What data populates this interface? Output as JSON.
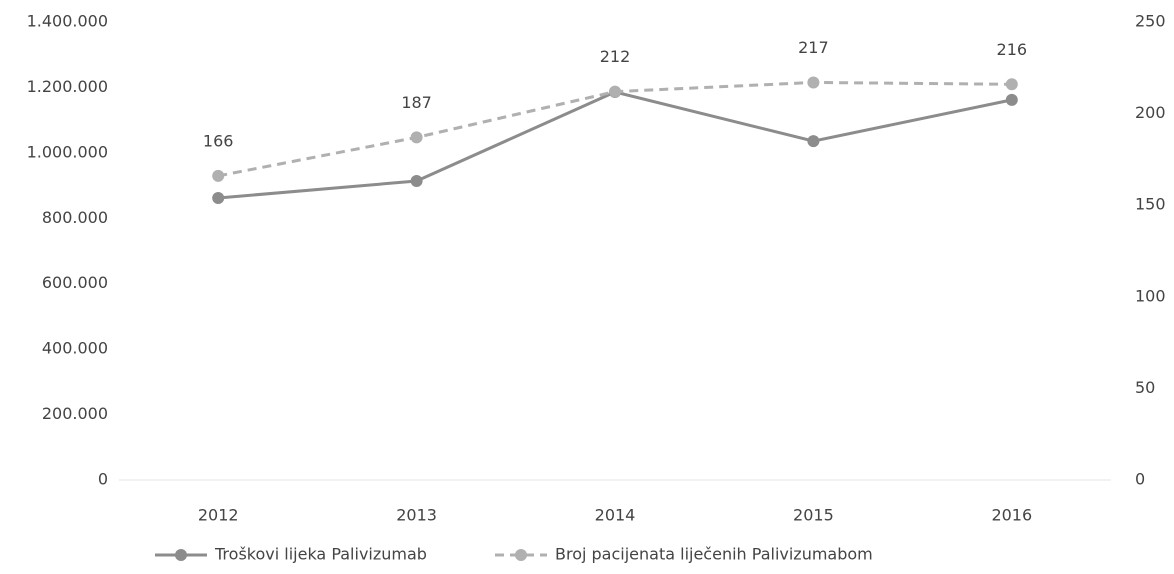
{
  "chart_data": {
    "type": "line",
    "categories": [
      "2012",
      "2013",
      "2014",
      "2015",
      "2016"
    ],
    "series": [
      {
        "name": "Troškovi lijeka Palivizumab",
        "color": "#8c8c8c",
        "values": [
          862000,
          914000,
          1186000,
          1036000,
          1162000
        ]
      },
      {
        "name": "Broj pacijenata liječenih Palivizumabom",
        "color": "#b0b0b0",
        "axis": "y2",
        "dashed": true,
        "values": [
          166,
          187,
          212,
          217,
          216
        ]
      }
    ],
    "ylim": [
      0,
      1400000
    ],
    "yticks": [
      0,
      {
        "value": 200000,
        "label": "200.000"
      },
      {
        "value": 400000,
        "label": "400.000"
      },
      {
        "value": 600000,
        "label": "600.000"
      },
      {
        "value": 800000,
        "label": "800.000"
      },
      {
        "value": 1000000,
        "label": "1.000.000"
      },
      {
        "value": 1200000,
        "label": "1.200.000"
      },
      {
        "value": 1400000,
        "label": "1.400.000"
      }
    ],
    "y2lim": [
      0,
      250
    ],
    "y2ticks": [
      0,
      50,
      100,
      150,
      200,
      250
    ],
    "grid": false,
    "legend": "bottom"
  }
}
